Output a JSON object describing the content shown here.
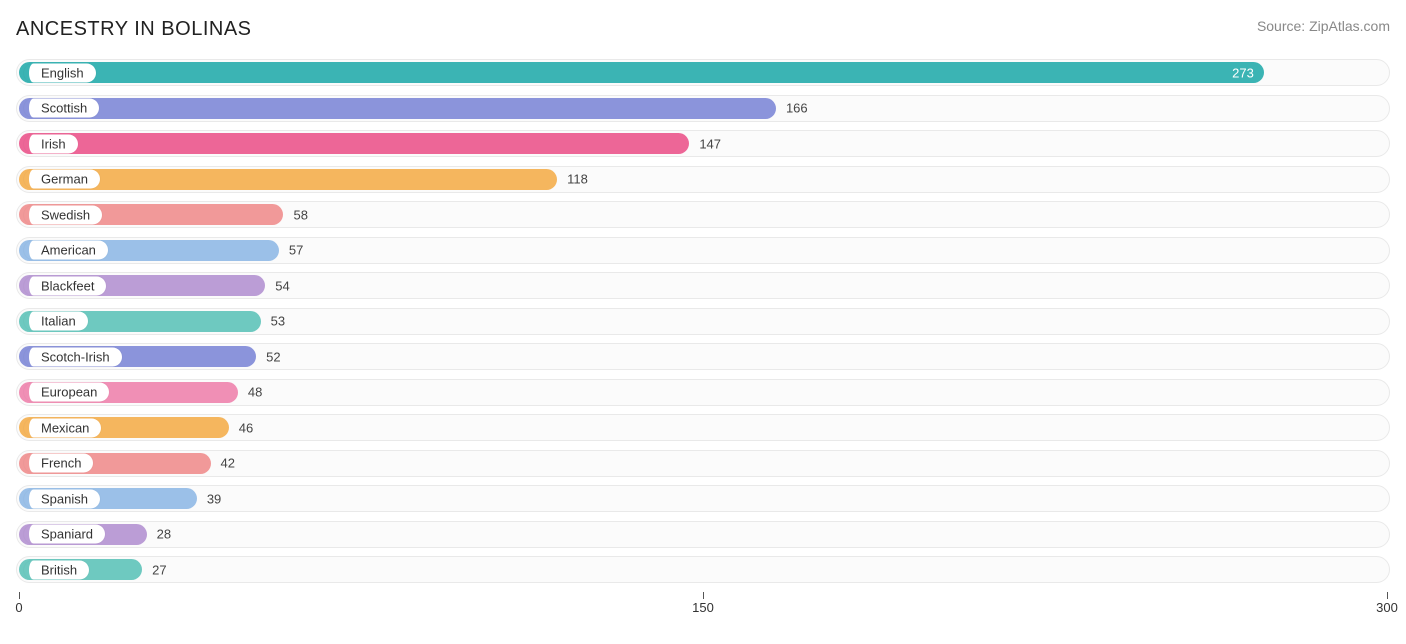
{
  "title": "ANCESTRY IN BOLINAS",
  "source": "Source: ZipAtlas.com",
  "chart": {
    "type": "bar",
    "xlim": [
      0,
      300
    ],
    "xticks": [
      0,
      150,
      300
    ],
    "track_bg": "#fbfbfb",
    "track_border": "#e9e9e9",
    "label_text_color": "#333333",
    "bars": [
      {
        "label": "English",
        "value": 273,
        "color": "#3bb4b4",
        "value_color": "#ffffff",
        "value_inside": true
      },
      {
        "label": "Scottish",
        "value": 166,
        "color": "#8b94db",
        "value_color": "#444444",
        "value_inside": false
      },
      {
        "label": "Irish",
        "value": 147,
        "color": "#ed6697",
        "value_color": "#444444",
        "value_inside": false
      },
      {
        "label": "German",
        "value": 118,
        "color": "#f5b65e",
        "value_color": "#444444",
        "value_inside": false
      },
      {
        "label": "Swedish",
        "value": 58,
        "color": "#f19999",
        "value_color": "#444444",
        "value_inside": false
      },
      {
        "label": "American",
        "value": 57,
        "color": "#9bc0e8",
        "value_color": "#444444",
        "value_inside": false
      },
      {
        "label": "Blackfeet",
        "value": 54,
        "color": "#bb9dd6",
        "value_color": "#444444",
        "value_inside": false
      },
      {
        "label": "Italian",
        "value": 53,
        "color": "#6ec9c0",
        "value_color": "#444444",
        "value_inside": false
      },
      {
        "label": "Scotch-Irish",
        "value": 52,
        "color": "#8b94db",
        "value_color": "#444444",
        "value_inside": false
      },
      {
        "label": "European",
        "value": 48,
        "color": "#f08fb5",
        "value_color": "#444444",
        "value_inside": false
      },
      {
        "label": "Mexican",
        "value": 46,
        "color": "#f5b65e",
        "value_color": "#444444",
        "value_inside": false
      },
      {
        "label": "French",
        "value": 42,
        "color": "#f19999",
        "value_color": "#444444",
        "value_inside": false
      },
      {
        "label": "Spanish",
        "value": 39,
        "color": "#9bc0e8",
        "value_color": "#444444",
        "value_inside": false
      },
      {
        "label": "Spaniard",
        "value": 28,
        "color": "#bb9dd6",
        "value_color": "#444444",
        "value_inside": false
      },
      {
        "label": "British",
        "value": 27,
        "color": "#6ec9c0",
        "value_color": "#444444",
        "value_inside": false
      }
    ]
  }
}
